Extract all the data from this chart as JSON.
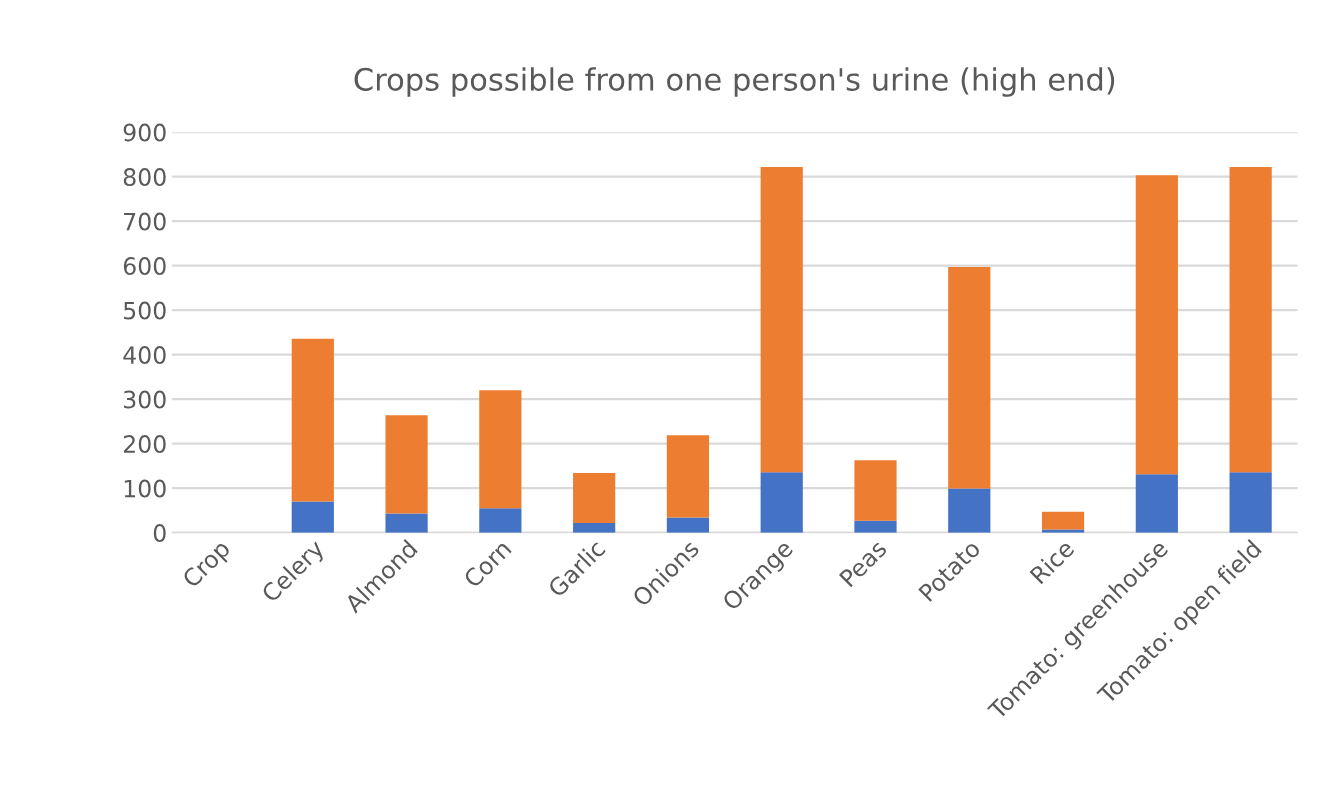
{
  "chart_data": {
    "type": "bar",
    "title": "Crops possible from one person's urine (high end)",
    "categories": [
      "Crop",
      "Celery",
      "Almond",
      "Corn",
      "Garlic",
      "Onions",
      "Orange",
      "Peas",
      "Potato",
      "Rice",
      "Tomato: greenhouse",
      "Tomato: open field"
    ],
    "stacked": true,
    "series": [
      {
        "color": "#4472c4",
        "values": [
          null,
          70,
          43,
          55,
          22,
          34,
          136,
          27,
          99,
          7,
          131,
          136
        ]
      },
      {
        "color": "#ed7d31",
        "values": [
          null,
          366,
          221,
          265,
          112,
          185,
          686,
          136,
          498,
          40,
          672,
          686
        ]
      }
    ],
    "ylim": [
      0,
      900
    ],
    "yticks": [
      0,
      100,
      200,
      300,
      400,
      500,
      600,
      700,
      800,
      900
    ],
    "grid": "y",
    "legend": false
  }
}
